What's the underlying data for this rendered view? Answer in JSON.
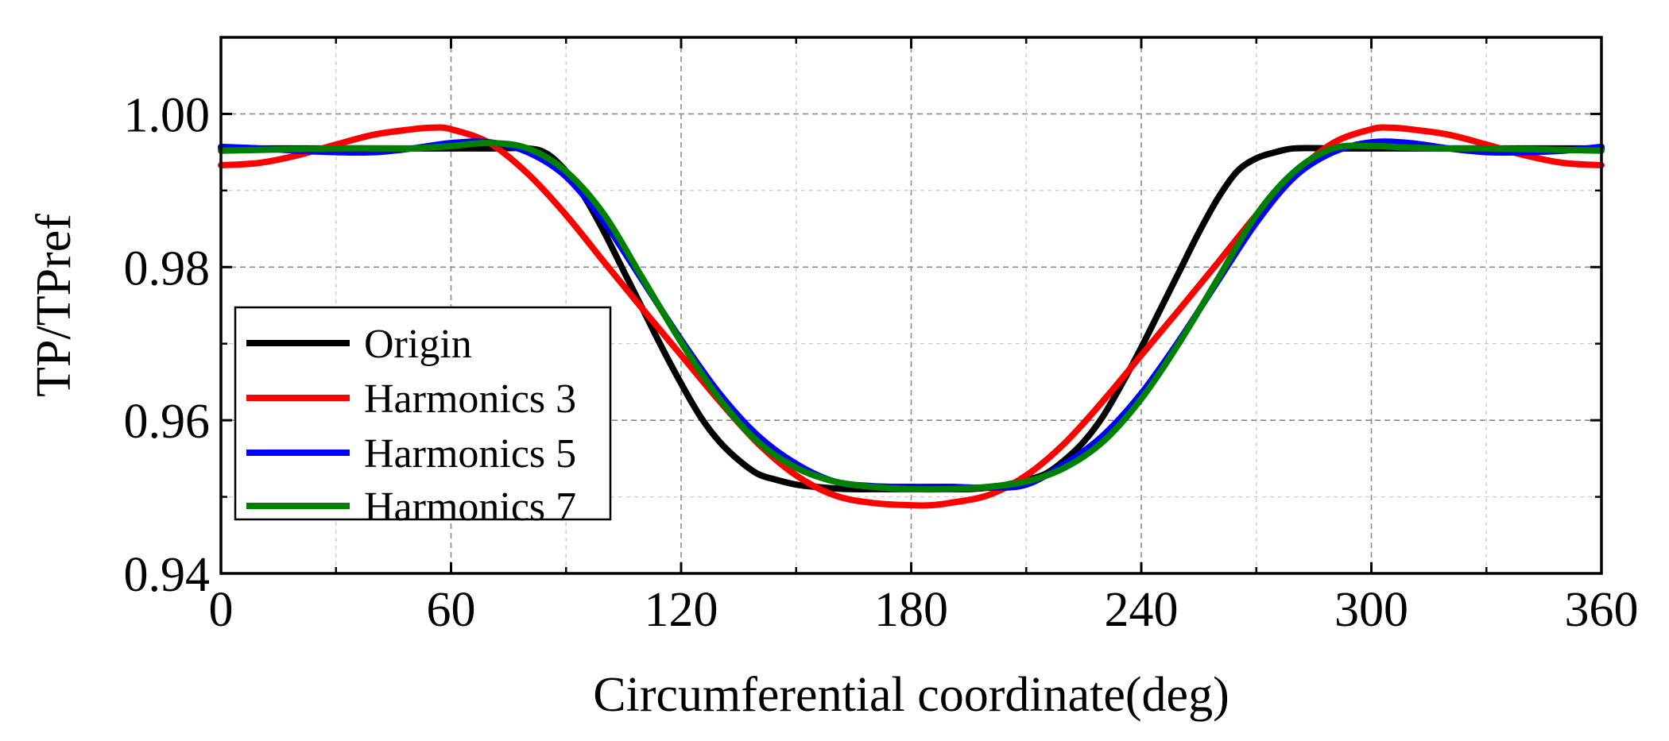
{
  "chart_data": {
    "type": "line",
    "title": "",
    "xlabel": "Circumferential coordinate(deg)",
    "ylabel": "TP/TPref",
    "xlim": [
      0,
      360
    ],
    "ylim": [
      0.94,
      1.01
    ],
    "xticks": [
      0,
      60,
      120,
      180,
      240,
      300,
      360
    ],
    "xtick_labels": [
      "0",
      "60",
      "120",
      "180",
      "240",
      "300",
      "360"
    ],
    "yticks": [
      0.94,
      0.96,
      0.98,
      1.0
    ],
    "ytick_labels": [
      "0.94",
      "0.96",
      "0.98",
      "1.00"
    ],
    "x_minor_gridlines": [
      30,
      90,
      150,
      210,
      270,
      330
    ],
    "y_minor_gridlines": [
      0.95,
      0.97,
      0.99
    ],
    "grid": true,
    "legend_position": "lower-left",
    "series": [
      {
        "name": "Origin",
        "color": "#000000",
        "x": [
          0,
          10,
          20,
          30,
          40,
          50,
          60,
          70,
          80,
          85,
          90,
          95,
          100,
          105,
          110,
          115,
          120,
          125,
          130,
          135,
          140,
          145,
          150,
          155,
          160,
          165,
          170,
          175,
          180,
          185,
          190,
          195,
          200,
          205,
          210,
          215,
          220,
          225,
          230,
          235,
          240,
          245,
          250,
          255,
          260,
          265,
          270,
          275,
          280,
          290,
          300,
          310,
          320,
          330,
          340,
          350,
          360
        ],
        "y": [
          0.9955,
          0.9955,
          0.9955,
          0.9955,
          0.9955,
          0.9955,
          0.9955,
          0.9955,
          0.9955,
          0.9948,
          0.9925,
          0.989,
          0.9845,
          0.9795,
          0.9745,
          0.9695,
          0.9648,
          0.9605,
          0.9572,
          0.9548,
          0.953,
          0.9522,
          0.9516,
          0.9513,
          0.9511,
          0.951,
          0.951,
          0.951,
          0.951,
          0.951,
          0.951,
          0.951,
          0.9512,
          0.9516,
          0.9522,
          0.953,
          0.9548,
          0.9572,
          0.9605,
          0.9648,
          0.9695,
          0.9745,
          0.9795,
          0.9845,
          0.989,
          0.9925,
          0.9942,
          0.995,
          0.9955,
          0.9955,
          0.9955,
          0.9955,
          0.9955,
          0.9955,
          0.9955,
          0.9955,
          0.9955
        ]
      },
      {
        "name": "Harmonics 3",
        "color": "#ff0000",
        "x": [
          0,
          10,
          20,
          30,
          40,
          50,
          55,
          60,
          70,
          80,
          90,
          100,
          110,
          120,
          130,
          140,
          150,
          160,
          170,
          180,
          185,
          190,
          200,
          210,
          220,
          230,
          240,
          250,
          260,
          270,
          280,
          290,
          300,
          305,
          310,
          320,
          330,
          340,
          350,
          360
        ],
        "y": [
          0.9933,
          0.9936,
          0.9946,
          0.996,
          0.9973,
          0.998,
          0.9982,
          0.998,
          0.9962,
          0.9922,
          0.9868,
          0.9806,
          0.9745,
          0.9685,
          0.9625,
          0.957,
          0.9528,
          0.9502,
          0.9492,
          0.9489,
          0.9489,
          0.9492,
          0.9502,
          0.9528,
          0.957,
          0.9625,
          0.9685,
          0.9745,
          0.9806,
          0.9868,
          0.9922,
          0.9962,
          0.998,
          0.9982,
          0.998,
          0.9973,
          0.996,
          0.9946,
          0.9936,
          0.9933
        ]
      },
      {
        "name": "Harmonics 5",
        "color": "#0000ff",
        "x": [
          0,
          10,
          20,
          30,
          40,
          50,
          60,
          70,
          80,
          90,
          100,
          110,
          120,
          130,
          140,
          150,
          160,
          170,
          180,
          190,
          200,
          210,
          220,
          230,
          240,
          250,
          260,
          270,
          280,
          290,
          300,
          310,
          320,
          330,
          340,
          350,
          360
        ],
        "y": [
          0.9957,
          0.9955,
          0.9952,
          0.995,
          0.995,
          0.9955,
          0.9962,
          0.9963,
          0.995,
          0.9918,
          0.9858,
          0.9782,
          0.9705,
          0.9635,
          0.958,
          0.9543,
          0.952,
          0.9514,
          0.9513,
          0.9513,
          0.9512,
          0.9516,
          0.9543,
          0.958,
          0.9635,
          0.9705,
          0.9782,
          0.9858,
          0.9918,
          0.995,
          0.9963,
          0.9962,
          0.9955,
          0.995,
          0.995,
          0.9952,
          0.9957
        ]
      },
      {
        "name": "Harmonics 7",
        "color": "#008000",
        "x": [
          0,
          10,
          20,
          30,
          40,
          50,
          60,
          70,
          80,
          90,
          100,
          110,
          120,
          130,
          140,
          150,
          160,
          170,
          180,
          190,
          200,
          210,
          220,
          230,
          240,
          250,
          260,
          270,
          280,
          290,
          300,
          310,
          320,
          330,
          340,
          350,
          360
        ],
        "y": [
          0.9952,
          0.9953,
          0.9954,
          0.9955,
          0.9955,
          0.9955,
          0.9958,
          0.9962,
          0.9955,
          0.9925,
          0.9868,
          0.9785,
          0.9702,
          0.9628,
          0.9572,
          0.9538,
          0.952,
          0.9513,
          0.951,
          0.951,
          0.9513,
          0.952,
          0.9538,
          0.9572,
          0.9628,
          0.9702,
          0.9785,
          0.9868,
          0.9925,
          0.9955,
          0.9958,
          0.9956,
          0.9955,
          0.9955,
          0.9954,
          0.9953,
          0.9952
        ]
      }
    ]
  }
}
